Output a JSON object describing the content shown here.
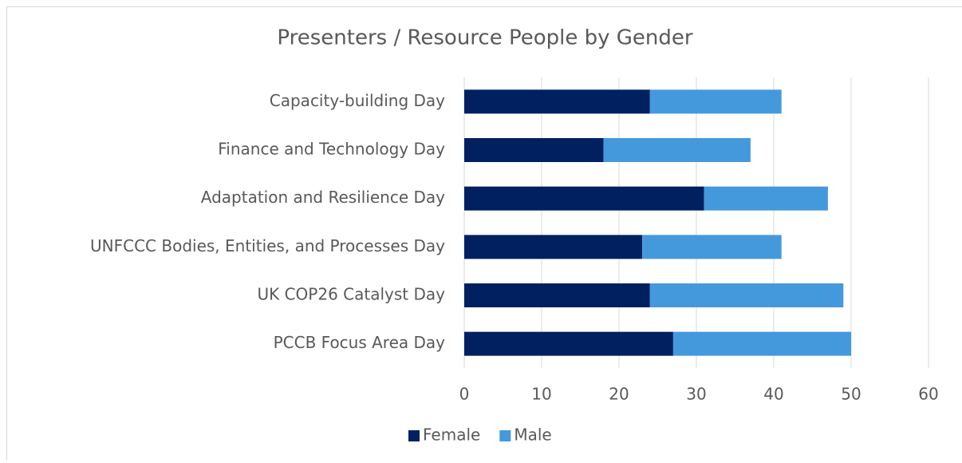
{
  "chart_data": {
    "type": "bar",
    "orientation": "horizontal",
    "stacked": true,
    "title": "Presenters / Resource People by Gender",
    "categories": [
      "Capacity-building Day",
      "Finance and Technology Day",
      "Adaptation and Resilience Day",
      "UNFCCC Bodies, Entities, and Processes Day",
      "UK COP26 Catalyst Day",
      "PCCB Focus Area Day"
    ],
    "series": [
      {
        "name": "Female",
        "color": "#002060",
        "values": [
          24,
          18,
          31,
          23,
          24,
          27
        ]
      },
      {
        "name": "Male",
        "color": "#4499dd",
        "values": [
          17,
          19,
          16,
          18,
          25,
          23
        ]
      }
    ],
    "xlim": [
      0,
      60
    ],
    "xticks": [
      0,
      10,
      20,
      30,
      40,
      50,
      60
    ],
    "grid": true,
    "legend": "bottom"
  }
}
